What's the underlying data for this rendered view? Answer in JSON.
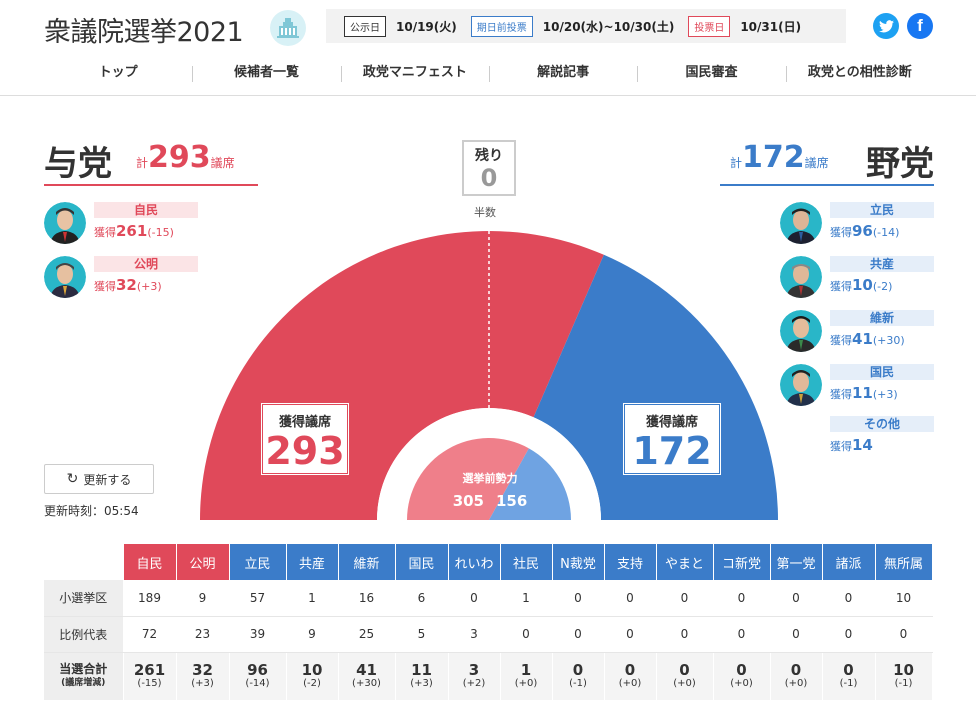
{
  "header": {
    "title": "衆議院選挙2021",
    "schedule": [
      {
        "badge": "公示日",
        "date": "10/19(火)",
        "style": ""
      },
      {
        "badge": "期日前投票",
        "date": "10/20(水)~10/30(土)",
        "style": "blue"
      },
      {
        "badge": "投票日",
        "date": "10/31(日)",
        "style": "red"
      }
    ],
    "nav": [
      "トップ",
      "候補者一覧",
      "政党マニフェスト",
      "解説記事",
      "国民審査",
      "政党との相性診断"
    ]
  },
  "ruling": {
    "label": "与党",
    "total_prefix": "計",
    "total": "293",
    "total_suffix": "議席",
    "parties": [
      {
        "name": "自民",
        "prefix": "獲得",
        "seats": "261",
        "diff": "(-15)",
        "seat_value": 261
      },
      {
        "name": "公明",
        "prefix": "獲得",
        "seats": "32",
        "diff": "(+3)",
        "seat_value": 32
      }
    ]
  },
  "opposition": {
    "label": "野党",
    "total_prefix": "計",
    "total": "172",
    "total_suffix": "議席",
    "parties": [
      {
        "name": "立民",
        "prefix": "獲得",
        "seats": "96",
        "diff": "(-14)"
      },
      {
        "name": "共産",
        "prefix": "獲得",
        "seats": "10",
        "diff": "(-2)"
      },
      {
        "name": "維新",
        "prefix": "獲得",
        "seats": "41",
        "diff": "(+30)"
      },
      {
        "name": "国民",
        "prefix": "獲得",
        "seats": "11",
        "diff": "(+3)"
      },
      {
        "name": "その他",
        "prefix": "獲得",
        "seats": "14",
        "diff": ""
      }
    ]
  },
  "remaining": {
    "label": "残り",
    "value": "0",
    "half_label": "半数"
  },
  "chart_data": {
    "type": "pie",
    "total_seats": 465,
    "slices": [
      {
        "name": "与党",
        "value": 293
      },
      {
        "name": "野党",
        "value": 172
      },
      {
        "name": "残り",
        "value": 0
      }
    ],
    "colors": {
      "ruling": "#e0495a",
      "opposition": "#3b7cc9",
      "ruling_prev": "#ef7f8a",
      "opposition_prev": "#6fa3e2"
    },
    "seat_box_label": "獲得議席",
    "ruling_seats": "293",
    "opposition_seats": "172",
    "previous": {
      "label": "選挙前勢力",
      "ruling": "305",
      "opposition": "156",
      "ruling_value": 305,
      "opposition_value": 156
    }
  },
  "refresh": {
    "label": "更新する",
    "updated": "更新時刻：05:54"
  },
  "table": {
    "parties": [
      {
        "name": "自民",
        "side": "g"
      },
      {
        "name": "公明",
        "side": "g"
      },
      {
        "name": "立民",
        "side": "o"
      },
      {
        "name": "共産",
        "side": "o"
      },
      {
        "name": "維新",
        "side": "o"
      },
      {
        "name": "国民",
        "side": "o"
      },
      {
        "name": "れいわ",
        "side": "o"
      },
      {
        "name": "社民",
        "side": "o"
      },
      {
        "name": "N裁党",
        "side": "o"
      },
      {
        "name": "支持",
        "side": "o"
      },
      {
        "name": "やまと",
        "side": "o"
      },
      {
        "name": "コ新党",
        "side": "o"
      },
      {
        "name": "第一党",
        "side": "o"
      },
      {
        "name": "諸派",
        "side": "o"
      },
      {
        "name": "無所属",
        "side": "o"
      }
    ],
    "single": {
      "label": "小選挙区",
      "values": [
        "189",
        "9",
        "57",
        "1",
        "16",
        "6",
        "0",
        "1",
        "0",
        "0",
        "0",
        "0",
        "0",
        "0",
        "10"
      ]
    },
    "pr": {
      "label": "比例代表",
      "values": [
        "72",
        "23",
        "39",
        "9",
        "25",
        "5",
        "3",
        "0",
        "0",
        "0",
        "0",
        "0",
        "0",
        "0",
        "0"
      ]
    },
    "total": {
      "label": "当選合計",
      "sub": "(議席増減)",
      "values": [
        "261",
        "32",
        "96",
        "10",
        "41",
        "11",
        "3",
        "1",
        "0",
        "0",
        "0",
        "0",
        "0",
        "0",
        "10"
      ],
      "diffs": [
        "(-15)",
        "(+3)",
        "(-14)",
        "(-2)",
        "(+30)",
        "(+3)",
        "(+2)",
        "(+0)",
        "(-1)",
        "(+0)",
        "(+0)",
        "(+0)",
        "(+0)",
        "(-1)",
        "(-1)"
      ]
    }
  }
}
